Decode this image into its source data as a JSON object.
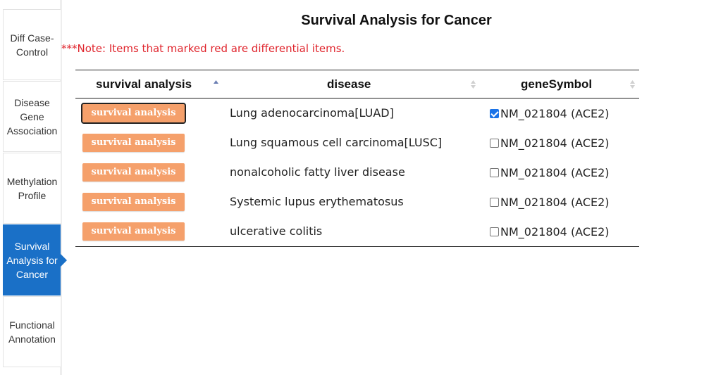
{
  "sidebar": {
    "items": [
      {
        "label": "Diff Case-\nControl"
      },
      {
        "label": "Disease\nGene\nAssociation"
      },
      {
        "label": "Methylation\nProfile"
      },
      {
        "label": "Survival\nAnalysis for\nCancer"
      },
      {
        "label": "Functional\nAnnotation"
      }
    ],
    "active_index": 3
  },
  "page": {
    "title": "Survival Analysis for Cancer",
    "note": "***Note: Items that marked red are differential items."
  },
  "table": {
    "columns": [
      {
        "label": "survival analysis",
        "sort": "ascending"
      },
      {
        "label": "disease",
        "sort": "none"
      },
      {
        "label": "geneSymbol",
        "sort": "none"
      }
    ],
    "rows": [
      {
        "button": "survival analysis",
        "disease": "Lung adenocarcinoma[LUAD]",
        "gene": "NM_021804 (ACE2)",
        "checked": true
      },
      {
        "button": "survival analysis",
        "disease": "Lung squamous cell carcinoma[LUSC]",
        "gene": "NM_021804 (ACE2)",
        "checked": false
      },
      {
        "button": "survival analysis",
        "disease": "nonalcoholic fatty liver disease",
        "gene": "NM_021804 (ACE2)",
        "checked": false
      },
      {
        "button": "survival analysis",
        "disease": "Systemic lupus erythematosus",
        "gene": "NM_021804 (ACE2)",
        "checked": false
      },
      {
        "button": "survival analysis",
        "disease": "ulcerative colitis",
        "gene": "NM_021804 (ACE2)",
        "checked": false
      }
    ]
  },
  "colors": {
    "accent": "#1a70c7",
    "button": "#f5a06b",
    "note": "#e0262e"
  },
  "icons": {
    "sort_active": "sort-ascending-icon",
    "sort_inactive": "sort-both-icon"
  }
}
